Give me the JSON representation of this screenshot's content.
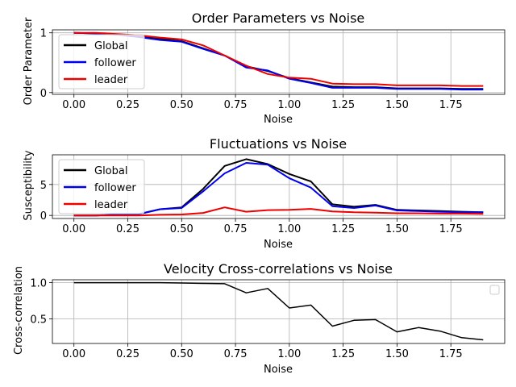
{
  "chart_data": [
    {
      "type": "line",
      "title": "Order Parameters vs Noise",
      "xlabel": "Noise",
      "ylabel": "Order Parameter",
      "xlim": [
        -0.1,
        2.0
      ],
      "ylim": [
        -0.03,
        1.05
      ],
      "xticks": [
        "0.00",
        "0.25",
        "0.50",
        "0.75",
        "1.00",
        "1.25",
        "1.50",
        "1.75"
      ],
      "yticks": [
        "0",
        "1"
      ],
      "grid": true,
      "legend": "top-left",
      "x": [
        0.0,
        0.1,
        0.2,
        0.3,
        0.4,
        0.5,
        0.6,
        0.7,
        0.8,
        0.9,
        1.0,
        1.1,
        1.2,
        1.3,
        1.4,
        1.5,
        1.6,
        1.7,
        1.8,
        1.9
      ],
      "series": [
        {
          "name": "Global",
          "color": "#000000",
          "values": [
            1.0,
            0.99,
            0.97,
            0.94,
            0.9,
            0.86,
            0.74,
            0.62,
            0.44,
            0.36,
            0.24,
            0.17,
            0.1,
            0.09,
            0.09,
            0.07,
            0.07,
            0.07,
            0.06,
            0.06
          ]
        },
        {
          "name": "follower",
          "color": "#0000ee",
          "values": [
            1.0,
            0.99,
            0.97,
            0.93,
            0.88,
            0.85,
            0.73,
            0.62,
            0.42,
            0.37,
            0.23,
            0.16,
            0.08,
            0.08,
            0.08,
            0.06,
            0.06,
            0.06,
            0.05,
            0.05
          ]
        },
        {
          "name": "leader",
          "color": "#ee0000",
          "values": [
            1.0,
            1.0,
            0.98,
            0.96,
            0.92,
            0.89,
            0.79,
            0.62,
            0.45,
            0.31,
            0.25,
            0.23,
            0.15,
            0.14,
            0.14,
            0.12,
            0.12,
            0.12,
            0.11,
            0.11
          ]
        }
      ]
    },
    {
      "type": "line",
      "title": "Fluctuations vs Noise",
      "xlabel": "Noise",
      "ylabel": "Susceptibility",
      "xlim": [
        -0.1,
        2.0
      ],
      "ylim": [
        -0.5,
        9.8
      ],
      "xticks": [
        "0.00",
        "0.25",
        "0.50",
        "0.75",
        "1.00",
        "1.25",
        "1.50",
        "1.75"
      ],
      "yticks": [
        "0",
        "5"
      ],
      "grid": true,
      "legend": "top-left",
      "x": [
        0.0,
        0.1,
        0.2,
        0.3,
        0.4,
        0.5,
        0.6,
        0.7,
        0.8,
        0.9,
        1.0,
        1.1,
        1.2,
        1.3,
        1.4,
        1.5,
        1.6,
        1.7,
        1.8,
        1.9
      ],
      "series": [
        {
          "name": "Global",
          "color": "#000000",
          "values": [
            0.0,
            0.0,
            0.1,
            0.2,
            1.0,
            1.3,
            4.3,
            8.0,
            9.1,
            8.3,
            6.7,
            5.5,
            1.8,
            1.4,
            1.7,
            0.9,
            0.8,
            0.7,
            0.6,
            0.5
          ]
        },
        {
          "name": "follower",
          "color": "#0000ee",
          "values": [
            0.0,
            0.0,
            0.1,
            0.2,
            1.0,
            1.2,
            3.9,
            6.8,
            8.5,
            8.2,
            6.0,
            4.5,
            1.5,
            1.2,
            1.6,
            0.8,
            0.7,
            0.6,
            0.5,
            0.5
          ]
        },
        {
          "name": "leader",
          "color": "#ee0000",
          "values": [
            0.0,
            0.0,
            0.0,
            0.0,
            0.1,
            0.15,
            0.4,
            1.3,
            0.6,
            0.85,
            0.9,
            1.05,
            0.65,
            0.5,
            0.45,
            0.35,
            0.35,
            0.3,
            0.3,
            0.25
          ]
        }
      ]
    },
    {
      "type": "line",
      "title": "Velocity Cross-correlations vs Noise",
      "xlabel": "Noise",
      "ylabel": "Cross-correlation",
      "xlim": [
        -0.1,
        2.0
      ],
      "ylim": [
        0.16,
        1.04
      ],
      "xticks": [
        "0.00",
        "0.25",
        "0.50",
        "0.75",
        "1.00",
        "1.25",
        "1.50",
        "1.75"
      ],
      "yticks": [
        "0.5",
        "1.0"
      ],
      "grid": true,
      "legend": "top-right",
      "x": [
        0.0,
        0.1,
        0.2,
        0.3,
        0.4,
        0.5,
        0.6,
        0.7,
        0.8,
        0.9,
        1.0,
        1.1,
        1.2,
        1.3,
        1.4,
        1.5,
        1.6,
        1.7,
        1.8,
        1.9
      ],
      "series": [
        {
          "color": "#000000",
          "values": [
            1.0,
            1.0,
            1.0,
            1.0,
            1.0,
            0.995,
            0.99,
            0.985,
            0.86,
            0.92,
            0.65,
            0.69,
            0.4,
            0.48,
            0.49,
            0.32,
            0.38,
            0.33,
            0.24,
            0.21
          ]
        }
      ]
    }
  ]
}
